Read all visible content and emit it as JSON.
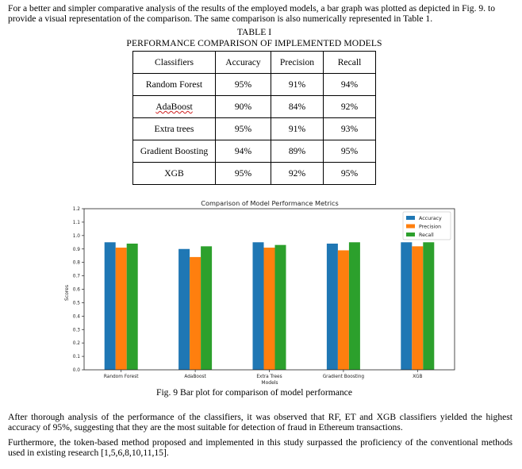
{
  "intro_text": "For a better and simpler comparative analysis of the results of the employed models, a bar graph was plotted as depicted in Fig. 9. to provide a visual representation of the comparison. The same comparison is also numerically represented in Table 1.",
  "table": {
    "number": "TABLE I",
    "title": "PERFORMANCE COMPARISON OF IMPLEMENTED MODELS",
    "headers": [
      "Classifiers",
      "Accuracy",
      "Precision",
      "Recall"
    ],
    "rows": [
      [
        "Random Forest",
        "95%",
        "91%",
        "94%"
      ],
      [
        "AdaBoost",
        "90%",
        "84%",
        "92%"
      ],
      [
        "Extra trees",
        "95%",
        "91%",
        "93%"
      ],
      [
        "Gradient Boosting",
        "94%",
        "89%",
        "95%"
      ],
      [
        "XGB",
        "95%",
        "92%",
        "95%"
      ]
    ]
  },
  "chart_data": {
    "type": "bar",
    "title": "Comparison of Model Performance Metrics",
    "xlabel": "Models",
    "ylabel": "Scores",
    "categories": [
      "Random Forest",
      "AdaBoost",
      "Extra Trees",
      "Gradient Boosting",
      "XGB"
    ],
    "series": [
      {
        "name": "Accuracy",
        "color": "#1f77b4",
        "values": [
          0.95,
          0.9,
          0.95,
          0.94,
          0.95
        ]
      },
      {
        "name": "Precision",
        "color": "#ff7f0e",
        "values": [
          0.91,
          0.84,
          0.91,
          0.89,
          0.92
        ]
      },
      {
        "name": "Recall",
        "color": "#2ca02c",
        "values": [
          0.94,
          0.92,
          0.93,
          0.95,
          0.95
        ]
      }
    ],
    "ylim": [
      0,
      1.2
    ],
    "yticks": [
      "0.0",
      "0.1",
      "0.2",
      "0.3",
      "0.4",
      "0.5",
      "0.6",
      "0.7",
      "0.8",
      "0.9",
      "1.0",
      "1.1",
      "1.2"
    ],
    "grid": false,
    "legend_position": "top-right"
  },
  "figure_caption": "Fig. 9 Bar plot for comparison of model performance",
  "after_text_1": "After thorough analysis of the performance of the classifiers, it was observed that RF, ET and XGB classifiers yielded the highest accuracy of 95%, suggesting that they are the most suitable for detection of fraud in Ethereum transactions.",
  "after_text_2": "Furthermore, the token-based method proposed and implemented in this study surpassed the proficiency of the conventional methods used in existing research [1,5,6,8,10,11,15]."
}
